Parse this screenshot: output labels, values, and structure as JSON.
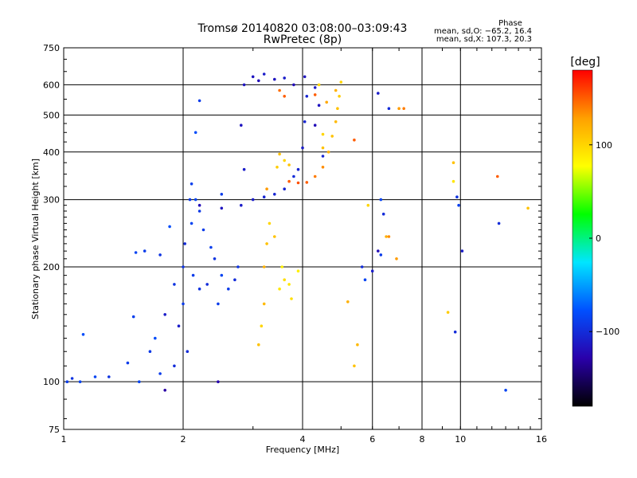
{
  "chart_data": {
    "type": "scatter",
    "title": "Tromsø 20140820 03:08:00–03:09:43",
    "subtitle": "RwPretec (8p)",
    "xlabel": "Frequency [MHz]",
    "ylabel": "Stationary phase Virtual Height [km]",
    "x_scale": "log",
    "y_scale": "log",
    "xlim": [
      1,
      16
    ],
    "ylim": [
      75,
      750
    ],
    "x_ticks": [
      1,
      2,
      4,
      6,
      8,
      10,
      16
    ],
    "x_grid": [
      2,
      4,
      6,
      8,
      10
    ],
    "y_ticks": [
      75,
      100,
      200,
      300,
      400,
      500,
      600,
      750
    ],
    "y_grid": [
      100,
      200,
      300,
      400,
      500,
      600
    ],
    "grid": true,
    "info": {
      "title": "Phase",
      "line1": "mean, sd,O: −65.2, 16.4",
      "line2": "mean, sd,X: 107.3, 20.3"
    },
    "colorbar": {
      "label": "[deg]",
      "range": [
        -180,
        180
      ],
      "ticks": [
        100,
        0,
        -100
      ],
      "tick_labels": [
        "100",
        "0",
        "−100"
      ],
      "colors": [
        "#ff0000",
        "#ffa000",
        "#ffff00",
        "#00ff00",
        "#00e6ff",
        "#0050ff",
        "#2a00aa",
        "#000000"
      ]
    },
    "series": [
      {
        "values": [
          [
            1.02,
            100,
            -90
          ],
          [
            1.05,
            102,
            -95
          ],
          [
            1.1,
            100,
            -85
          ],
          [
            1.12,
            133,
            -80
          ],
          [
            1.2,
            103,
            -85
          ],
          [
            1.3,
            103,
            -95
          ],
          [
            1.45,
            112,
            -90
          ],
          [
            1.5,
            148,
            -88
          ],
          [
            1.52,
            218,
            -85
          ],
          [
            1.6,
            220,
            -90
          ],
          [
            1.65,
            120,
            -92
          ],
          [
            1.7,
            130,
            -80
          ],
          [
            1.75,
            215,
            -95
          ],
          [
            1.8,
            150,
            -110
          ],
          [
            1.85,
            255,
            -80
          ],
          [
            1.9,
            180,
            -95
          ],
          [
            1.9,
            110,
            -100
          ],
          [
            1.95,
            140,
            -110
          ],
          [
            2.0,
            200,
            -95
          ],
          [
            2.0,
            160,
            -90
          ],
          [
            2.02,
            230,
            -100
          ],
          [
            2.05,
            120,
            -100
          ],
          [
            2.08,
            300,
            -90
          ],
          [
            2.1,
            260,
            -85
          ],
          [
            2.1,
            330,
            -88
          ],
          [
            2.12,
            190,
            -90
          ],
          [
            2.15,
            300,
            -85
          ],
          [
            2.15,
            450,
            -80
          ],
          [
            2.2,
            175,
            -95
          ],
          [
            2.2,
            280,
            -92
          ],
          [
            2.25,
            250,
            -90
          ],
          [
            2.3,
            180,
            -100
          ],
          [
            2.35,
            225,
            -88
          ],
          [
            2.4,
            210,
            -95
          ],
          [
            2.45,
            160,
            -90
          ],
          [
            2.5,
            190,
            -85
          ],
          [
            2.5,
            310,
            -90
          ],
          [
            2.6,
            175,
            -90
          ],
          [
            2.7,
            185,
            -100
          ],
          [
            2.75,
            200,
            -95
          ],
          [
            1.55,
            100,
            -85
          ],
          [
            1.75,
            105,
            -90
          ],
          [
            2.2,
            545,
            -90
          ],
          [
            1.8,
            95,
            -130
          ],
          [
            2.85,
            360,
            -110
          ],
          [
            2.8,
            470,
            -115
          ],
          [
            2.45,
            100,
            -125
          ]
        ]
      },
      {
        "values": [
          [
            2.2,
            290,
            -120
          ],
          [
            2.5,
            285,
            -115
          ],
          [
            2.8,
            290,
            -110
          ],
          [
            3.0,
            300,
            -110
          ],
          [
            3.2,
            305,
            -105
          ],
          [
            3.4,
            310,
            -105
          ],
          [
            3.6,
            320,
            -105
          ],
          [
            3.8,
            345,
            -100
          ],
          [
            3.9,
            360,
            -105
          ],
          [
            4.0,
            410,
            -110
          ],
          [
            4.05,
            480,
            -105
          ],
          [
            4.1,
            560,
            -105
          ],
          [
            3.0,
            630,
            -115
          ],
          [
            3.1,
            615,
            -120
          ],
          [
            3.2,
            640,
            -110
          ],
          [
            3.4,
            620,
            -115
          ],
          [
            3.6,
            625,
            -110
          ],
          [
            3.8,
            600,
            -120
          ],
          [
            4.05,
            630,
            -115
          ],
          [
            4.3,
            590,
            -110
          ],
          [
            4.4,
            530,
            -115
          ],
          [
            4.3,
            470,
            -120
          ],
          [
            2.85,
            600,
            -115
          ],
          [
            4.5,
            390,
            -105
          ]
        ]
      },
      {
        "values": [
          [
            3.1,
            125,
            110
          ],
          [
            3.15,
            140,
            100
          ],
          [
            3.2,
            160,
            115
          ],
          [
            3.2,
            200,
            120
          ],
          [
            3.25,
            230,
            110
          ],
          [
            3.25,
            320,
            130
          ],
          [
            3.3,
            260,
            100
          ],
          [
            3.4,
            240,
            110
          ],
          [
            3.5,
            175,
            90
          ],
          [
            3.55,
            200,
            85
          ],
          [
            3.6,
            185,
            95
          ],
          [
            3.7,
            180,
            90
          ],
          [
            3.75,
            165,
            95
          ],
          [
            3.9,
            195,
            85
          ],
          [
            3.6,
            380,
            100
          ],
          [
            3.7,
            370,
            110
          ],
          [
            3.5,
            395,
            110
          ],
          [
            3.45,
            365,
            105
          ]
        ]
      },
      {
        "values": [
          [
            3.7,
            335,
            150
          ],
          [
            3.9,
            332,
            155
          ],
          [
            4.1,
            333,
            150
          ],
          [
            4.3,
            345,
            140
          ],
          [
            4.5,
            365,
            135
          ],
          [
            4.65,
            400,
            120
          ],
          [
            4.75,
            440,
            110
          ],
          [
            4.85,
            480,
            115
          ],
          [
            4.9,
            520,
            110
          ],
          [
            4.95,
            560,
            105
          ],
          [
            5.0,
            610,
            100
          ],
          [
            4.85,
            580,
            120
          ],
          [
            4.6,
            540,
            125
          ],
          [
            4.5,
            445,
            100
          ],
          [
            4.5,
            410,
            110
          ],
          [
            4.3,
            565,
            150
          ],
          [
            4.4,
            600,
            100
          ],
          [
            5.4,
            430,
            150
          ],
          [
            3.6,
            560,
            150
          ],
          [
            3.5,
            580,
            145
          ]
        ]
      },
      {
        "values": [
          [
            5.2,
            162,
            120
          ],
          [
            5.4,
            110,
            110
          ],
          [
            5.5,
            125,
            115
          ],
          [
            5.65,
            200,
            -100
          ],
          [
            5.75,
            185,
            -85
          ],
          [
            5.85,
            290,
            100
          ],
          [
            6.0,
            195,
            -110
          ],
          [
            6.2,
            570,
            -110
          ],
          [
            6.2,
            220,
            -120
          ],
          [
            6.3,
            215,
            -90
          ],
          [
            6.4,
            275,
            -100
          ],
          [
            6.5,
            240,
            120
          ],
          [
            6.6,
            240,
            135
          ],
          [
            6.9,
            210,
            130
          ],
          [
            6.3,
            300,
            -85
          ],
          [
            7.0,
            520,
            130
          ],
          [
            7.2,
            520,
            140
          ],
          [
            9.3,
            152,
            105
          ],
          [
            9.6,
            335,
            90
          ],
          [
            9.6,
            375,
            110
          ],
          [
            9.8,
            305,
            -95
          ],
          [
            9.9,
            290,
            -88
          ],
          [
            10.1,
            220,
            -110
          ],
          [
            12.4,
            345,
            150
          ],
          [
            12.5,
            260,
            -100
          ],
          [
            14.8,
            285,
            110
          ],
          [
            9.7,
            135,
            -100
          ],
          [
            13.0,
            95,
            -85
          ],
          [
            6.6,
            520,
            -100
          ]
        ]
      }
    ]
  }
}
